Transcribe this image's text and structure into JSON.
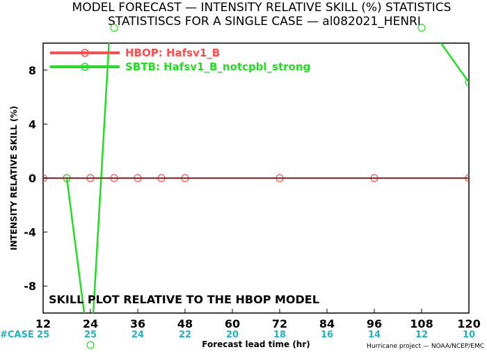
{
  "chart_data": {
    "type": "line",
    "title": "MODEL FORECAST — INTENSITY RELATIVE SKILL (%) STATISTICS",
    "subtitle": "STATISTISCS FOR A SINGLE CASE — al082021_HENRI",
    "xlabel": "Forecast lead time (hr)",
    "ylabel": "INTENSITY RELATIVE SKILL (%)",
    "xlim": [
      12,
      120
    ],
    "ylim": [
      -10,
      10
    ],
    "x_ticks": [
      "12",
      "24",
      "36",
      "48",
      "60",
      "72",
      "84",
      "96",
      "108",
      "120"
    ],
    "y_ticks": [
      "8",
      "4",
      "0",
      "-4",
      "-8"
    ],
    "grid": false,
    "legend_position": "top-left",
    "annotation": "SKILL PLOT RELATIVE TO THE HBOP MODEL",
    "credit": "Hurricane project — NOAA/NCEP/EMC",
    "cases": {
      "label": "#CASE",
      "values": [
        "25",
        "25",
        "24",
        "22",
        "20",
        "18",
        "16",
        "14",
        "12",
        "10"
      ]
    },
    "series": [
      {
        "name": "HBOP: Hafsv1_B",
        "color": "#ff4c4c",
        "x": [
          12,
          18,
          24,
          30,
          36,
          42,
          48,
          72,
          96,
          120
        ],
        "y": [
          0,
          0,
          0,
          0,
          0,
          0,
          0,
          0,
          0,
          0
        ]
      },
      {
        "name": "SBTB: Hafsv1_B_notcpbl_strong",
        "color": "#22dd22",
        "x": [
          18,
          24,
          30,
          108,
          120
        ],
        "y": [
          0,
          -13.6,
          16.5,
          12.0,
          7.1
        ]
      }
    ]
  }
}
